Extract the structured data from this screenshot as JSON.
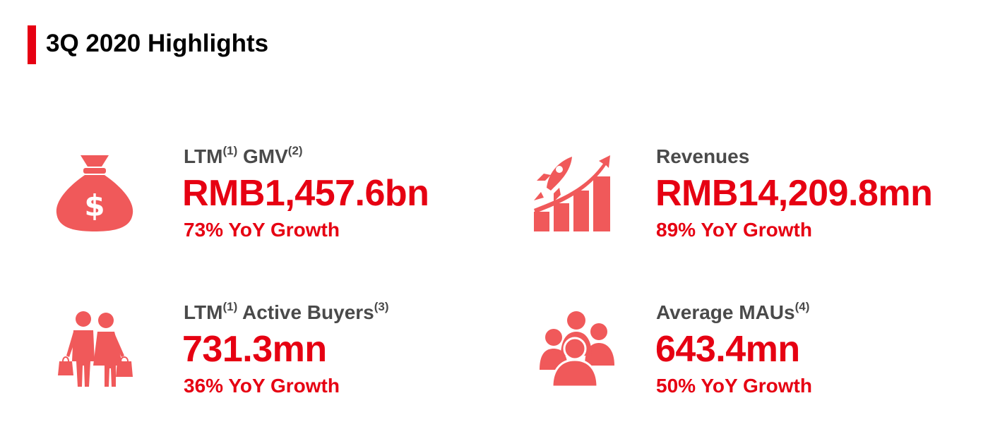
{
  "page": {
    "title": "3Q 2020 Highlights"
  },
  "colors": {
    "accent": "#e60012",
    "icon": "#f0595a",
    "label": "#4a4a4a"
  },
  "metrics": [
    {
      "icon": "money-bag-icon",
      "label_parts": [
        "LTM",
        "(1)",
        " GMV",
        "(2)"
      ],
      "value": "RMB1,457.6bn",
      "growth": "73% YoY Growth"
    },
    {
      "icon": "rocket-growth-chart-icon",
      "label_parts": [
        "Revenues"
      ],
      "value": "RMB14,209.8mn",
      "growth": "89% YoY Growth"
    },
    {
      "icon": "shoppers-icon",
      "label_parts": [
        "LTM",
        "(1)",
        " Active Buyers",
        "(3)"
      ],
      "value": "731.3mn",
      "growth": "36% YoY Growth"
    },
    {
      "icon": "people-group-icon",
      "label_parts": [
        "Average MAUs",
        "(4)"
      ],
      "value": "643.4mn",
      "growth": "50% YoY Growth"
    }
  ]
}
